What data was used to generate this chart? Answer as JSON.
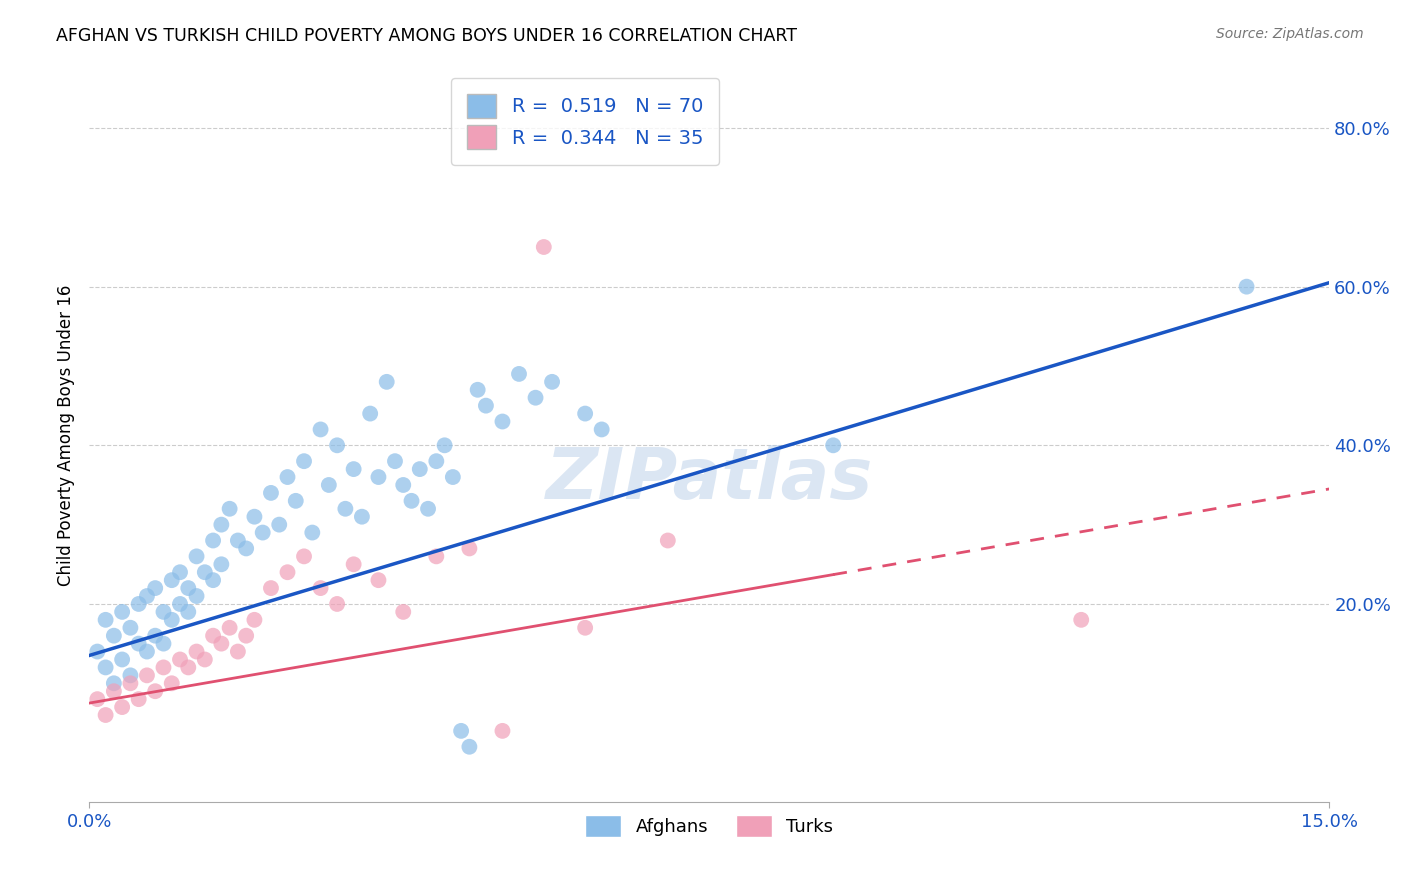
{
  "title": "AFGHAN VS TURKISH CHILD POVERTY AMONG BOYS UNDER 16 CORRELATION CHART",
  "source": "Source: ZipAtlas.com",
  "ylabel": "Child Poverty Among Boys Under 16",
  "ytick_values": [
    0.8,
    0.6,
    0.4,
    0.2
  ],
  "xmin": 0.0,
  "xmax": 0.15,
  "ymin": -0.05,
  "ymax": 0.875,
  "afghan_color": "#8BBDE8",
  "turkish_color": "#F0A0B8",
  "afghan_line_color": "#1A56C4",
  "turkish_line_color": "#E05070",
  "afghan_R": 0.519,
  "afghan_N": 70,
  "turkish_R": 0.344,
  "turkish_N": 35,
  "watermark": "ZIPatlas",
  "afghan_line_y0": 0.135,
  "afghan_line_y1": 0.605,
  "turkish_line_y0": 0.075,
  "turkish_line_y1": 0.345,
  "afghan_points_x": [
    0.001,
    0.002,
    0.002,
    0.003,
    0.003,
    0.004,
    0.004,
    0.005,
    0.005,
    0.006,
    0.006,
    0.007,
    0.007,
    0.008,
    0.008,
    0.009,
    0.009,
    0.01,
    0.01,
    0.011,
    0.011,
    0.012,
    0.012,
    0.013,
    0.013,
    0.014,
    0.015,
    0.015,
    0.016,
    0.016,
    0.017,
    0.018,
    0.019,
    0.02,
    0.021,
    0.022,
    0.023,
    0.024,
    0.025,
    0.026,
    0.027,
    0.028,
    0.029,
    0.03,
    0.031,
    0.032,
    0.033,
    0.034,
    0.035,
    0.036,
    0.037,
    0.038,
    0.039,
    0.04,
    0.041,
    0.042,
    0.043,
    0.044,
    0.045,
    0.046,
    0.047,
    0.048,
    0.05,
    0.052,
    0.054,
    0.056,
    0.06,
    0.062,
    0.09,
    0.14
  ],
  "afghan_points_y": [
    0.14,
    0.12,
    0.18,
    0.1,
    0.16,
    0.13,
    0.19,
    0.11,
    0.17,
    0.15,
    0.2,
    0.14,
    0.21,
    0.16,
    0.22,
    0.15,
    0.19,
    0.18,
    0.23,
    0.2,
    0.24,
    0.19,
    0.22,
    0.21,
    0.26,
    0.24,
    0.28,
    0.23,
    0.3,
    0.25,
    0.32,
    0.28,
    0.27,
    0.31,
    0.29,
    0.34,
    0.3,
    0.36,
    0.33,
    0.38,
    0.29,
    0.42,
    0.35,
    0.4,
    0.32,
    0.37,
    0.31,
    0.44,
    0.36,
    0.48,
    0.38,
    0.35,
    0.33,
    0.37,
    0.32,
    0.38,
    0.4,
    0.36,
    0.04,
    0.02,
    0.47,
    0.45,
    0.43,
    0.49,
    0.46,
    0.48,
    0.44,
    0.42,
    0.4,
    0.6
  ],
  "turkish_points_x": [
    0.001,
    0.002,
    0.003,
    0.004,
    0.005,
    0.006,
    0.007,
    0.008,
    0.009,
    0.01,
    0.011,
    0.012,
    0.013,
    0.014,
    0.015,
    0.016,
    0.017,
    0.018,
    0.019,
    0.02,
    0.022,
    0.024,
    0.026,
    0.028,
    0.03,
    0.032,
    0.035,
    0.038,
    0.042,
    0.046,
    0.05,
    0.055,
    0.06,
    0.12,
    0.07
  ],
  "turkish_points_y": [
    0.08,
    0.06,
    0.09,
    0.07,
    0.1,
    0.08,
    0.11,
    0.09,
    0.12,
    0.1,
    0.13,
    0.12,
    0.14,
    0.13,
    0.16,
    0.15,
    0.17,
    0.14,
    0.16,
    0.18,
    0.22,
    0.24,
    0.26,
    0.22,
    0.2,
    0.25,
    0.23,
    0.19,
    0.26,
    0.27,
    0.04,
    0.65,
    0.17,
    0.18,
    0.28
  ]
}
